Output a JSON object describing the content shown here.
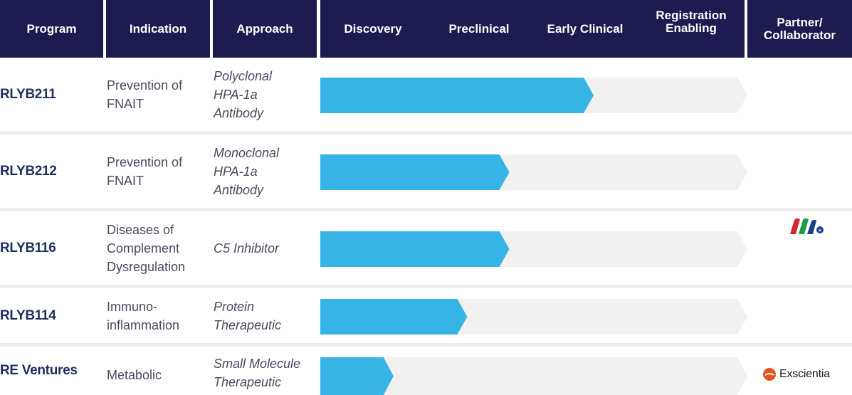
{
  "header": {
    "program": "Program",
    "indication": "Indication",
    "approach": "Approach",
    "partner": "Partner/\nCollaborator",
    "stages": [
      "Discovery",
      "Preclinical",
      "Early Clinical",
      "Registration\nEnabling"
    ]
  },
  "colors": {
    "header_bg": "#1d1b4f",
    "bar_fill": "#36b4e5",
    "bar_track": "#f1f1f1",
    "program_text": "#1d2f5e"
  },
  "rows": [
    {
      "program": "RLYB211",
      "indication": "Prevention of FNAIT",
      "approach": "Polyclonal HPA-1a Antibody"
    },
    {
      "program": "RLYB212",
      "indication": "Prevention of FNAIT",
      "approach": "Monoclonal HPA-1a Antibody"
    },
    {
      "program": "RLYB116",
      "indication": "Diseases of Complement Dysregulation",
      "approach": "C5 Inhibitor"
    },
    {
      "program": "RLYB114",
      "indication": "Immuno-inflammation",
      "approach": "Protein Therapeutic"
    },
    {
      "program": "RE Ventures",
      "indication": "Metabolic",
      "approach": "Small Molecule Therapeutic"
    }
  ],
  "partners": {
    "rlyb116_logo": "partner-logo-icon",
    "re_ventures": "Exscientia"
  },
  "chart_data": {
    "type": "bar",
    "orientation": "horizontal",
    "categories": [
      "RLYB211",
      "RLYB212",
      "RLYB116",
      "RLYB114",
      "RE Ventures"
    ],
    "stages": [
      "Discovery",
      "Preclinical",
      "Early Clinical",
      "Registration Enabling"
    ],
    "values": [
      2.5,
      1.7,
      1.7,
      1.3,
      0.6
    ],
    "xlim": [
      0,
      4
    ],
    "grid": false,
    "legend": "none"
  }
}
